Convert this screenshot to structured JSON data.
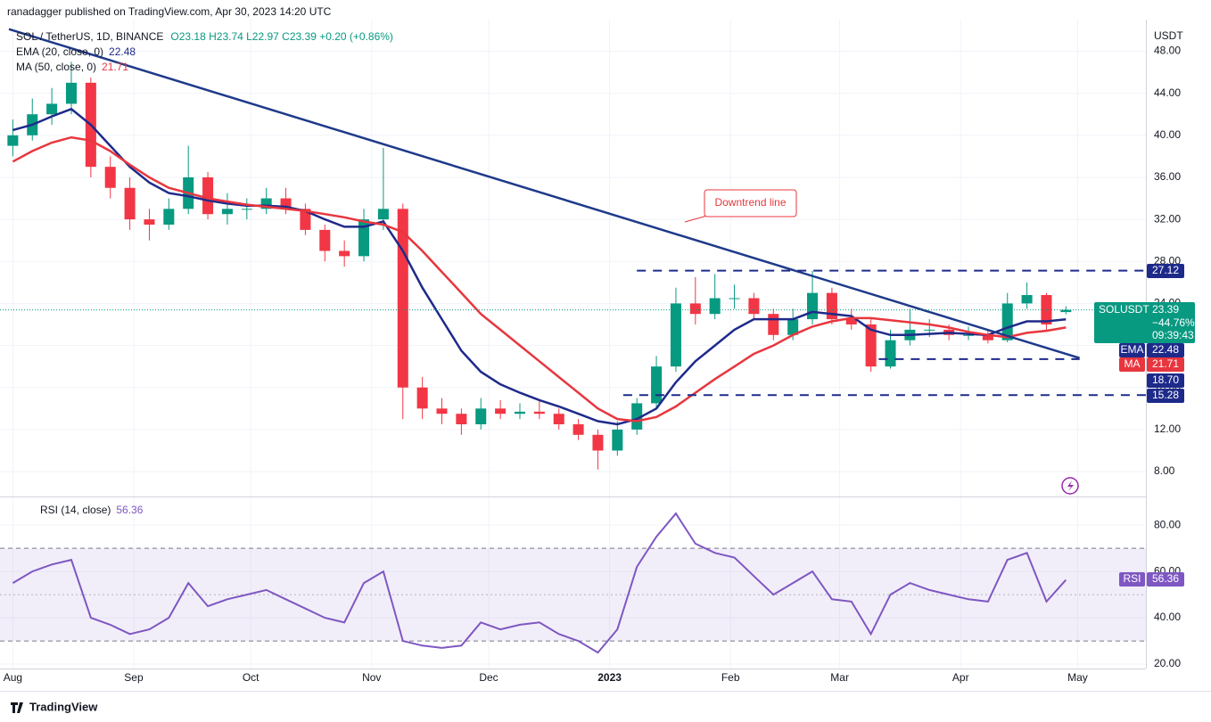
{
  "publisher": "ranadagger published on TradingView.com, Apr 30, 2023 14:20 UTC",
  "footer": "TradingView",
  "chart_data": [
    {
      "type": "candlestick",
      "title": "SOL / TetherUS, 1D, BINANCE",
      "ohlc_text": "O23.18 H23.74 L22.97 C23.39 +0.20 (+0.86%)",
      "unit": "USDT",
      "up_color": "#089981",
      "down_color": "#f23645",
      "open": [
        39,
        40,
        42,
        43,
        45,
        37,
        35,
        32,
        31.5,
        33,
        36,
        32.5,
        33,
        33,
        34,
        33,
        31,
        29,
        28.5,
        32,
        33,
        16,
        14,
        13.5,
        12.5,
        14,
        13.5,
        13.7,
        13.5,
        12.5,
        11.5,
        10,
        12,
        14.5,
        18,
        24,
        23,
        24.5,
        24.5,
        23,
        21,
        22.5,
        25,
        22.5,
        22,
        18,
        20.5,
        21.5,
        21.5,
        21,
        21,
        20.5,
        24,
        24.8,
        23.18
      ],
      "high": [
        41.5,
        43.5,
        44.5,
        47,
        45.5,
        38,
        36,
        33,
        34,
        39,
        36.5,
        34.5,
        34,
        35,
        35,
        33.5,
        31.5,
        30,
        33,
        38.8,
        33.5,
        17,
        15,
        14,
        15,
        14.8,
        14.5,
        14.8,
        14,
        13,
        12,
        12.8,
        15,
        19,
        25.5,
        26.5,
        26.8,
        25.8,
        25,
        23.5,
        23.5,
        27.1,
        25.5,
        23.5,
        22.5,
        21.5,
        23.5,
        22.5,
        22,
        21.8,
        21.5,
        25,
        26,
        25,
        23.74
      ],
      "low": [
        38,
        39.5,
        41,
        42,
        36,
        34,
        31,
        30,
        31,
        32.5,
        32,
        31.5,
        32,
        32.5,
        32.5,
        30.5,
        28,
        27.5,
        28,
        31,
        13,
        13,
        12.5,
        11.5,
        12,
        13,
        13,
        13,
        12,
        11,
        8.2,
        9.5,
        11.5,
        14,
        17.5,
        22,
        22.5,
        23.5,
        22.5,
        20.5,
        20.5,
        22,
        22,
        21.5,
        17.5,
        17.8,
        20,
        20.8,
        20.5,
        20.5,
        20.2,
        20.3,
        23.5,
        21.5,
        22.97
      ],
      "close": [
        40,
        42,
        43,
        45,
        37,
        35,
        32,
        31.5,
        33,
        36,
        32.5,
        33,
        33,
        34,
        33,
        31,
        29,
        28.5,
        32,
        33,
        16,
        14,
        13.5,
        12.5,
        14,
        13.5,
        13.7,
        13.5,
        12.5,
        11.5,
        10,
        12,
        14.5,
        18,
        24,
        23,
        24.5,
        24.5,
        23,
        21,
        22.5,
        25,
        22.5,
        22,
        18,
        20.5,
        21.5,
        21.5,
        21,
        21,
        20.5,
        24,
        24.8,
        22,
        23.39
      ],
      "series": [
        {
          "name": "EMA (20, close, 0)",
          "tag": "EMA",
          "color": "#1e2a8a",
          "values": [
            40.5,
            41,
            41.8,
            42.5,
            41,
            39,
            37,
            35.5,
            34.5,
            34.2,
            33.8,
            33.5,
            33.3,
            33.3,
            33.2,
            32.8,
            32,
            31.3,
            31.3,
            31.8,
            29,
            25.5,
            22.5,
            19.5,
            17.5,
            16.3,
            15.5,
            14.8,
            14.2,
            13.5,
            12.8,
            12.5,
            13,
            14,
            16.5,
            18.5,
            20,
            21.5,
            22.5,
            22.5,
            22.5,
            23.2,
            23,
            22.8,
            21.5,
            21,
            21,
            21.1,
            21.2,
            21.1,
            21,
            21.7,
            22.3,
            22.3,
            22.48
          ]
        },
        {
          "name": "MA (50, close, 0)",
          "tag": "MA",
          "color": "#e8363e",
          "values": [
            37.5,
            38.5,
            39.3,
            39.8,
            39.5,
            38.5,
            37.2,
            36,
            35,
            34.5,
            34,
            33.7,
            33.4,
            33.2,
            33,
            32.8,
            32.5,
            32.2,
            31.8,
            31.5,
            30.8,
            29,
            27,
            25,
            23,
            21.5,
            20,
            18.5,
            17,
            15.5,
            14,
            13,
            12.8,
            13.2,
            14.2,
            15.5,
            16.8,
            18,
            19.2,
            20,
            21,
            21.8,
            22.3,
            22.6,
            22.6,
            22.4,
            22.2,
            22,
            21.7,
            21.3,
            21,
            20.8,
            21.2,
            21.4,
            21.71
          ]
        }
      ],
      "symbol_tag": {
        "name": "SOLUSDT",
        "change": "−44.76%",
        "countdown": "09:39:43"
      },
      "level_color": "#1e2a8a",
      "levels": [
        {
          "value": 27.12,
          "from": 32
        },
        {
          "value": 18.7,
          "label": "18.70",
          "from": 44.4,
          "to": 54.7
        },
        {
          "value": 15.28,
          "from": 31.3
        }
      ],
      "trendline": {
        "label": "Downtrend line",
        "color": "#1e3a8a",
        "points": [
          [
            -0.2,
            50.1
          ],
          [
            54.7,
            18.8
          ]
        ]
      },
      "xlim": [
        -0.2,
        58.1
      ],
      "ylim": [
        5.8,
        50.5
      ],
      "yticks": [
        {
          "value": 8,
          "label": "8.00"
        },
        {
          "value": 12,
          "label": "12.00"
        },
        {
          "value": 16,
          "label": "16.00"
        },
        {
          "value": 20,
          "label": "20.00"
        },
        {
          "value": 24,
          "label": "24.00"
        },
        {
          "value": 28,
          "label": "28.00"
        },
        {
          "value": 32,
          "label": "32.00"
        },
        {
          "value": 36,
          "label": "36.00"
        },
        {
          "value": 40,
          "label": "40.00"
        },
        {
          "value": 44,
          "label": "44.00"
        },
        {
          "value": 48,
          "label": "48.00"
        }
      ],
      "grid": true
    },
    {
      "type": "line",
      "title": "RSI (14, close)",
      "series": [
        {
          "name": "RSI",
          "color": "#7e57c2",
          "values": [
            55,
            60,
            63,
            65,
            40,
            37,
            33,
            35,
            40,
            55,
            45,
            48,
            50,
            52,
            48,
            44,
            40,
            38,
            55,
            60,
            30,
            28,
            27,
            28,
            38,
            35,
            37,
            38,
            33,
            30,
            25,
            35,
            62,
            75,
            85,
            72,
            68,
            66,
            58,
            50,
            55,
            60,
            48,
            47,
            33,
            50,
            55,
            52,
            50,
            48,
            47,
            65,
            68,
            47,
            56.36
          ]
        }
      ],
      "bands": [
        30,
        70
      ],
      "midline": 50,
      "band_color": "#7e57c2",
      "xlim": [
        -0.2,
        58.1
      ],
      "ylim": [
        18.1,
        91.2
      ],
      "yticks": [
        {
          "value": 20,
          "label": "20.00"
        },
        {
          "value": 40,
          "label": "40.00"
        },
        {
          "value": 60,
          "label": "60.00"
        },
        {
          "value": 80,
          "label": "80.00"
        }
      ],
      "xticks": [
        {
          "value": 0,
          "label": "Aug"
        },
        {
          "value": 6.2,
          "label": "Sep"
        },
        {
          "value": 12.2,
          "label": "Oct"
        },
        {
          "value": 18.4,
          "label": "Nov"
        },
        {
          "value": 24.4,
          "label": "Dec"
        },
        {
          "value": 30.6,
          "label": "2023"
        },
        {
          "value": 36.8,
          "label": "Feb"
        },
        {
          "value": 42.4,
          "label": "Mar"
        },
        {
          "value": 48.6,
          "label": "Apr"
        },
        {
          "value": 54.6,
          "label": "May"
        }
      ],
      "grid": true
    }
  ]
}
